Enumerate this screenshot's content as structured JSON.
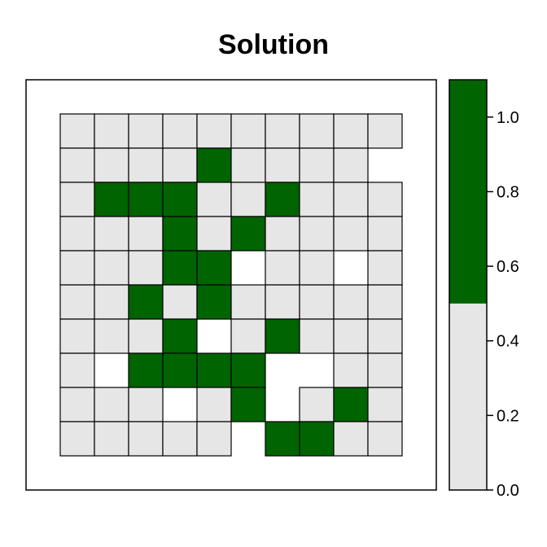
{
  "chart_data": {
    "type": "heatmap",
    "title": "Solution",
    "rows": 10,
    "cols": 10,
    "note_missing": "null = no cell drawn",
    "grid": [
      [
        0,
        0,
        0,
        0,
        0,
        0,
        0,
        0,
        0,
        0
      ],
      [
        0,
        0,
        0,
        0,
        1,
        0,
        0,
        0,
        0,
        null
      ],
      [
        0,
        1,
        1,
        1,
        0,
        0,
        1,
        0,
        0,
        0
      ],
      [
        0,
        0,
        0,
        1,
        0,
        1,
        0,
        0,
        0,
        0
      ],
      [
        0,
        0,
        0,
        1,
        1,
        null,
        0,
        0,
        null,
        0
      ],
      [
        0,
        0,
        1,
        0,
        1,
        0,
        0,
        0,
        0,
        0
      ],
      [
        0,
        0,
        0,
        1,
        null,
        0,
        1,
        0,
        0,
        0
      ],
      [
        0,
        null,
        1,
        1,
        1,
        1,
        null,
        null,
        0,
        0
      ],
      [
        0,
        0,
        0,
        null,
        0,
        1,
        null,
        0,
        1,
        0
      ],
      [
        0,
        0,
        0,
        0,
        0,
        null,
        1,
        1,
        0,
        0
      ]
    ],
    "colorbar": {
      "range": [
        0,
        1.1
      ],
      "ticks": [
        0.0,
        0.2,
        0.4,
        0.6,
        0.8,
        1.0
      ],
      "tick_labels": [
        "0.0",
        "0.2",
        "0.4",
        "0.6",
        "0.8",
        "1.0"
      ],
      "bands": [
        {
          "from": 0.0,
          "to": 0.5,
          "color": "#e6e6e6"
        },
        {
          "from": 0.5,
          "to": 1.1,
          "color": "#006400"
        }
      ]
    },
    "colors": {
      "low": "#e6e6e6",
      "high": "#006400",
      "border": "#000000"
    }
  }
}
